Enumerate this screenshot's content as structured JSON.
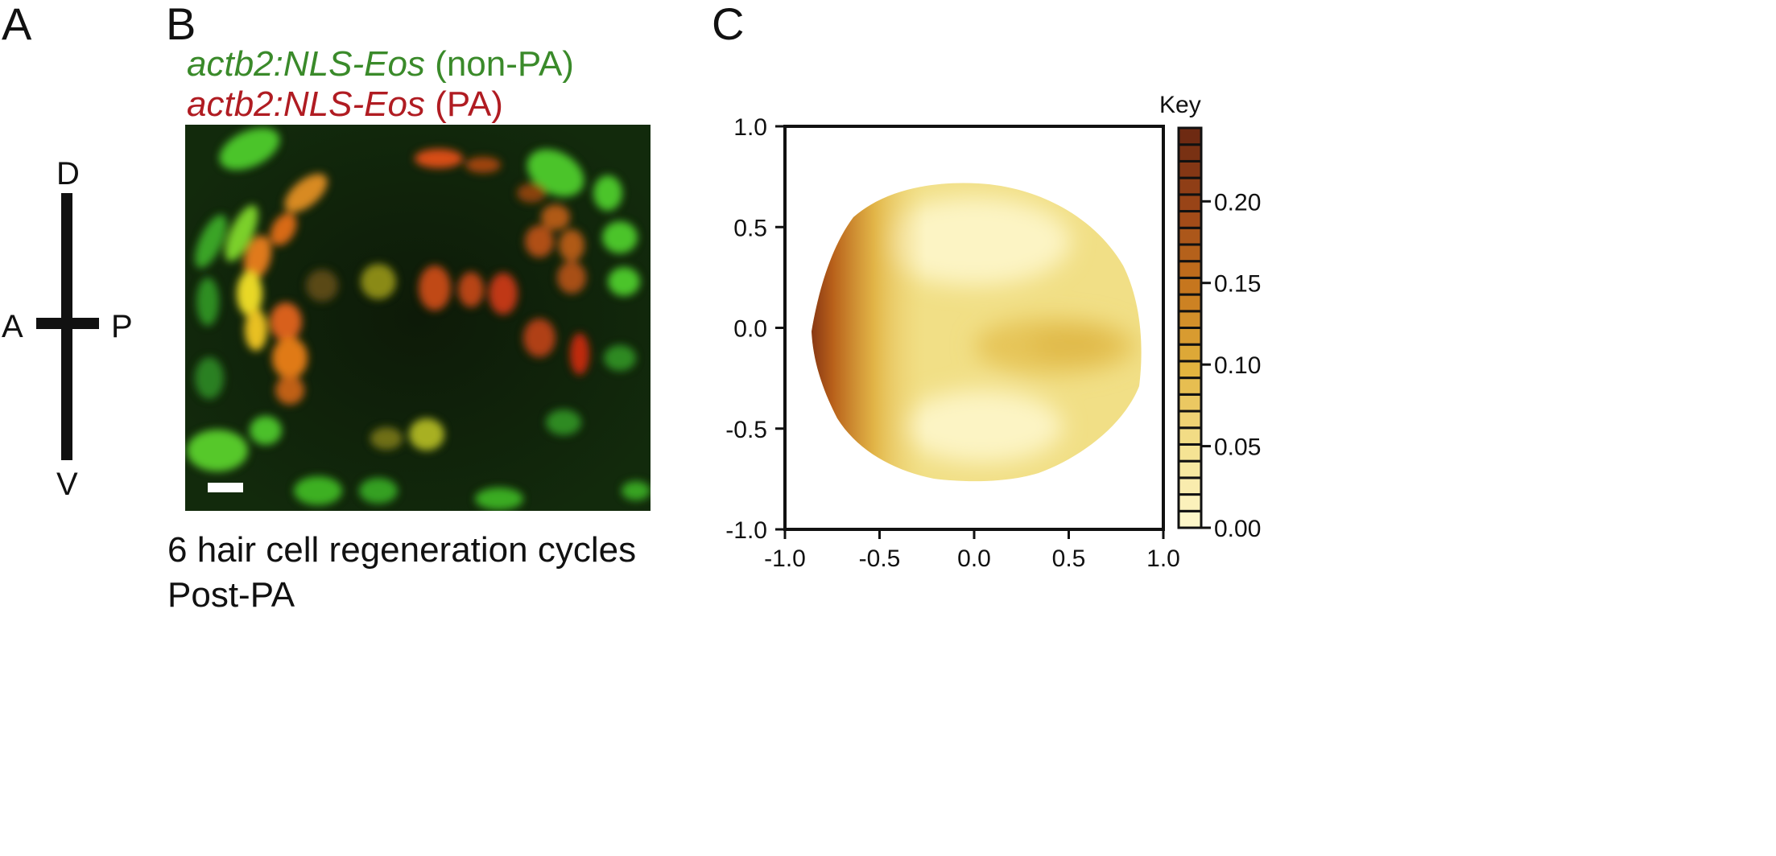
{
  "panels": {
    "a": {
      "label": "A",
      "axes": {
        "dorsal": "D",
        "ventral": "V",
        "anterior": "A",
        "posterior": "P"
      }
    },
    "b": {
      "label": "B",
      "legend": [
        {
          "italic": "actb2:NLS-Eos",
          "suffix": " (non-PA)",
          "color": "#3a8a2a"
        },
        {
          "italic": "actb2:NLS-Eos",
          "suffix": " (PA)",
          "color": "#b01c22"
        }
      ],
      "caption_line1": "6 hair cell regeneration cycles",
      "caption_line2": "Post-PA"
    },
    "c": {
      "label": "C",
      "key_title": "Key"
    }
  },
  "chart_data": {
    "type": "heatmap",
    "title": "",
    "xlabel": "",
    "ylabel": "",
    "xlim": [
      -1.0,
      1.0
    ],
    "ylim": [
      -1.0,
      1.0
    ],
    "x_ticks": [
      "-1.0",
      "-0.5",
      "0.0",
      "0.5",
      "1.0"
    ],
    "y_ticks": [
      "1.0",
      "0.5",
      "0.0",
      "-0.5",
      "-1.0"
    ],
    "colorbar": {
      "title": "Key",
      "range": [
        0.0,
        0.245
      ],
      "ticks": [
        "0.20",
        "0.15",
        "0.10",
        "0.05",
        "0.00"
      ],
      "levels": 24,
      "low_color": "#fdf6c8",
      "high_color": "#6e2a12"
    },
    "description_points": [
      {
        "x": -0.85,
        "y": 0.0,
        "value": 0.23
      },
      {
        "x": 0.55,
        "y": -0.1,
        "value": 0.08
      },
      {
        "x": 0.0,
        "y": 0.5,
        "value": 0.01
      },
      {
        "x": 0.05,
        "y": -0.5,
        "value": 0.01
      }
    ]
  }
}
